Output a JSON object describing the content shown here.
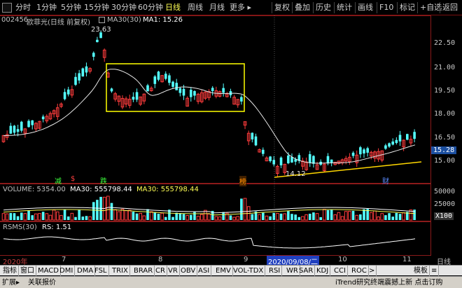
{
  "toolbar": {
    "periods": [
      "分时",
      "1分钟",
      "5分钟",
      "15分钟",
      "30分钟",
      "60分钟",
      "日线",
      "周线",
      "月线",
      "更多 ▸"
    ],
    "active_period": "日线",
    "tools": [
      "复权",
      "叠加",
      "历史",
      "统计",
      "画线",
      "F10",
      "标记",
      "+自选",
      "返回"
    ]
  },
  "title": {
    "code": "002456",
    "name": "欧菲光(日线 前复权)",
    "ma30_label": "MA30(30)",
    "ma1_label": "MA1: 15.26"
  },
  "price_axis": [
    "22.50",
    "21.00",
    "19.50",
    "18.00",
    "16.50",
    "15.00"
  ],
  "current_price": "15.28",
  "annotations": {
    "high": "23.63",
    "low": "14.12",
    "markers": [
      "减",
      "$",
      "跌",
      "榜",
      "财"
    ]
  },
  "volume": {
    "label": "VOLUME: 5354.00",
    "ma30_a": "MA30: 555798.44",
    "ma30_b": "MA30: 555798.44",
    "axis": [
      "50000",
      "25000",
      "X100"
    ]
  },
  "rsms": {
    "label": "RSMS(30)",
    "value": "RS: 1.51"
  },
  "dates": {
    "year": "2020年",
    "months": [
      "7",
      "8",
      "9",
      "10",
      "11"
    ],
    "cursor": "2020/09/08/二",
    "right": "日线"
  },
  "indicator_tabs": [
    "指标",
    "窗口",
    "MACD",
    "DMI",
    "DMA",
    "FSL",
    "TRIX",
    "BRAR",
    "CR",
    "VR",
    "OBV",
    "ASI",
    "EMV",
    "VOL-TDX",
    "RSI",
    "WR",
    "SAR",
    "KDJ",
    "CCI",
    "ROC",
    ">",
    "模板",
    "≡"
  ],
  "status": {
    "left": [
      "扩展▸",
      "关联报价"
    ],
    "right": "iTrend研究终端震撼上新 点击订购"
  },
  "colors": {
    "up": "#ff3c3c",
    "down": "#54ffff",
    "ma": "#e8e8e8",
    "box": "#ffff00",
    "trend": "#ffd700"
  }
}
